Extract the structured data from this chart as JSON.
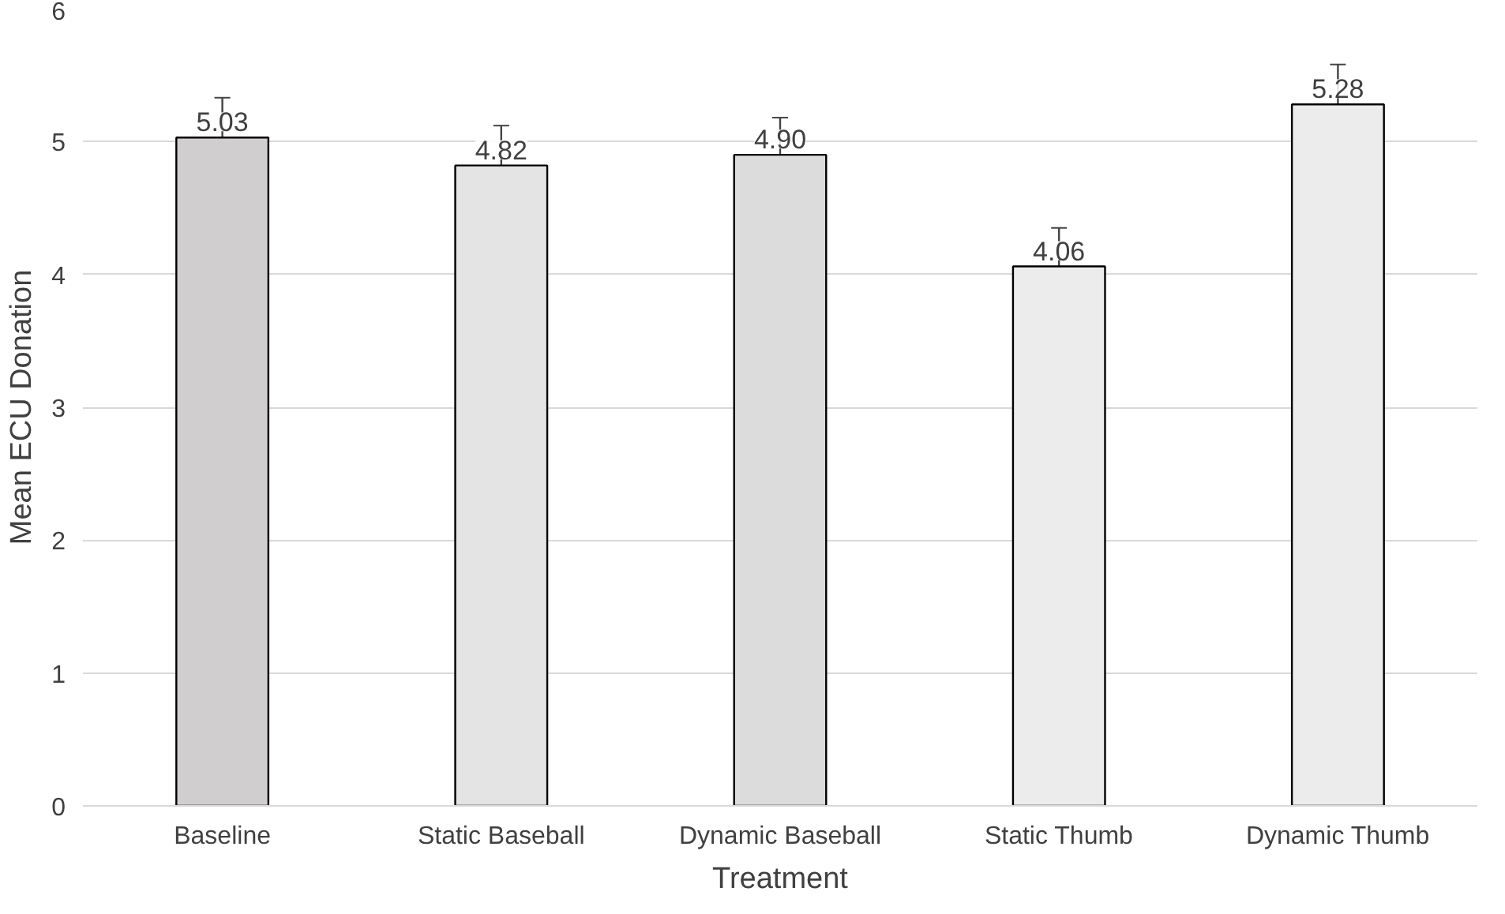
{
  "chart_data": {
    "type": "bar",
    "xlabel": "Treatment",
    "ylabel": "Mean ECU Donation",
    "categories": [
      "Baseline",
      "Static Baseball",
      "Dynamic Baseball",
      "Static Thumb",
      "Dynamic Thumb"
    ],
    "values": [
      5.03,
      4.82,
      4.9,
      4.06,
      5.28
    ],
    "errors": [
      0.3,
      0.3,
      0.28,
      0.29,
      0.3
    ],
    "colors": [
      "#d0cece",
      "#e4e4e4",
      "#dcdcdc",
      "#ececec",
      "#ececec"
    ],
    "value_labels": [
      "5.03",
      "4.82",
      "4.90",
      "4.06",
      "5.28"
    ],
    "ylim": [
      0,
      6
    ],
    "yticks": [
      0,
      1,
      2,
      3,
      4,
      5,
      6
    ],
    "grid": "y"
  }
}
